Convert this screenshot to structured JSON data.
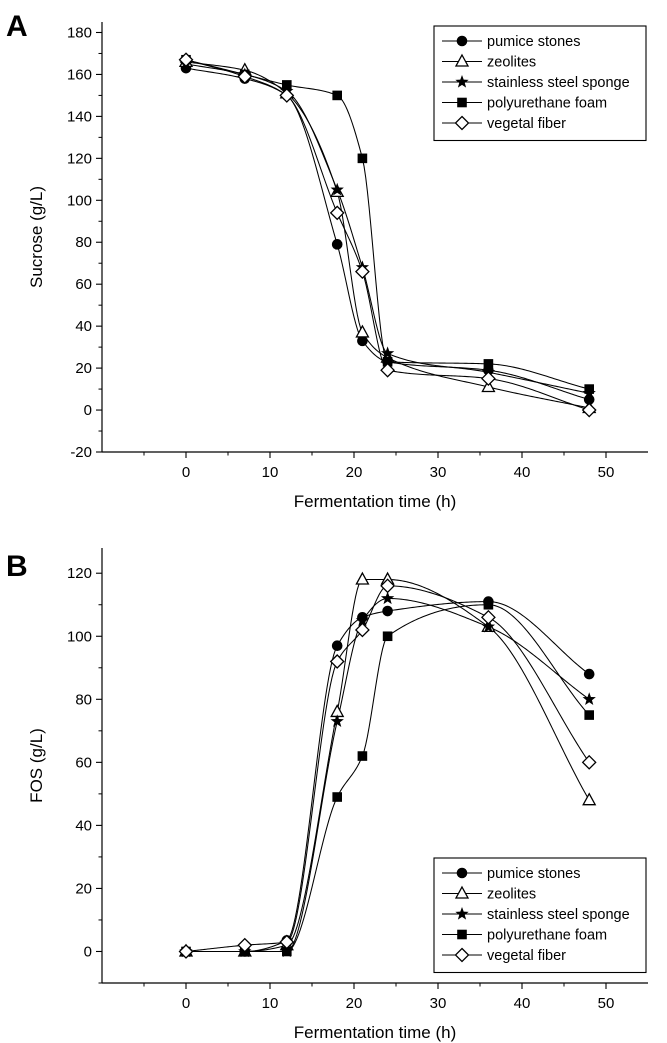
{
  "chart_data": [
    {
      "panel": "A",
      "type": "scatter",
      "title": "",
      "xlabel": "Fermentation time (h)",
      "ylabel": "Sucrose (g/L)",
      "xlim": [
        -10,
        55
      ],
      "ylim": [
        -20,
        185
      ],
      "xticks": [
        0,
        10,
        20,
        30,
        40,
        50
      ],
      "yticks": [
        -20,
        0,
        20,
        40,
        60,
        80,
        100,
        120,
        140,
        160,
        180
      ],
      "legend_position": "top-right",
      "x": [
        0,
        7,
        12,
        18,
        21,
        24,
        36,
        48
      ],
      "series": [
        {
          "name": "pumice stones",
          "marker": "filled-circle",
          "values": [
            163,
            158,
            150,
            79,
            33,
            23,
            19,
            5
          ]
        },
        {
          "name": "zeolites",
          "marker": "open-triangle",
          "values": [
            166,
            162,
            151,
            104,
            37,
            25,
            11,
            1
          ]
        },
        {
          "name": "stainless steel sponge",
          "marker": "filled-star",
          "values": [
            165,
            160,
            152,
            105,
            68,
            27,
            18,
            8
          ]
        },
        {
          "name": "polyurethane foam",
          "marker": "filled-square",
          "values": [
            167,
            160,
            155,
            150,
            120,
            23,
            22,
            10
          ]
        },
        {
          "name": "vegetal fiber",
          "marker": "open-diamond",
          "values": [
            167,
            159,
            150,
            94,
            66,
            19,
            15,
            0
          ]
        }
      ]
    },
    {
      "panel": "B",
      "type": "scatter",
      "title": "",
      "xlabel": "Fermentation time (h)",
      "ylabel": "FOS (g/L)",
      "xlim": [
        -10,
        55
      ],
      "ylim": [
        -10,
        128
      ],
      "xticks": [
        0,
        10,
        20,
        30,
        40,
        50
      ],
      "yticks": [
        0,
        20,
        40,
        60,
        80,
        100,
        120
      ],
      "legend_position": "bottom-right",
      "x": [
        0,
        7,
        12,
        18,
        21,
        24,
        36,
        48
      ],
      "series": [
        {
          "name": "pumice stones",
          "marker": "filled-circle",
          "values": [
            0,
            0,
            3.5,
            97,
            106,
            108,
            111,
            88
          ]
        },
        {
          "name": "zeolites",
          "marker": "open-triangle",
          "values": [
            0,
            0,
            2,
            76,
            118,
            118,
            103,
            48
          ]
        },
        {
          "name": "stainless steel sponge",
          "marker": "filled-star",
          "values": [
            0,
            0,
            0,
            73,
            105,
            112,
            103,
            80
          ]
        },
        {
          "name": "polyurethane foam",
          "marker": "filled-square",
          "values": [
            0,
            0,
            0,
            49,
            62,
            100,
            110,
            75
          ]
        },
        {
          "name": "vegetal fiber",
          "marker": "open-diamond",
          "values": [
            0,
            2,
            3,
            92,
            102,
            116,
            106,
            60
          ]
        }
      ]
    }
  ]
}
